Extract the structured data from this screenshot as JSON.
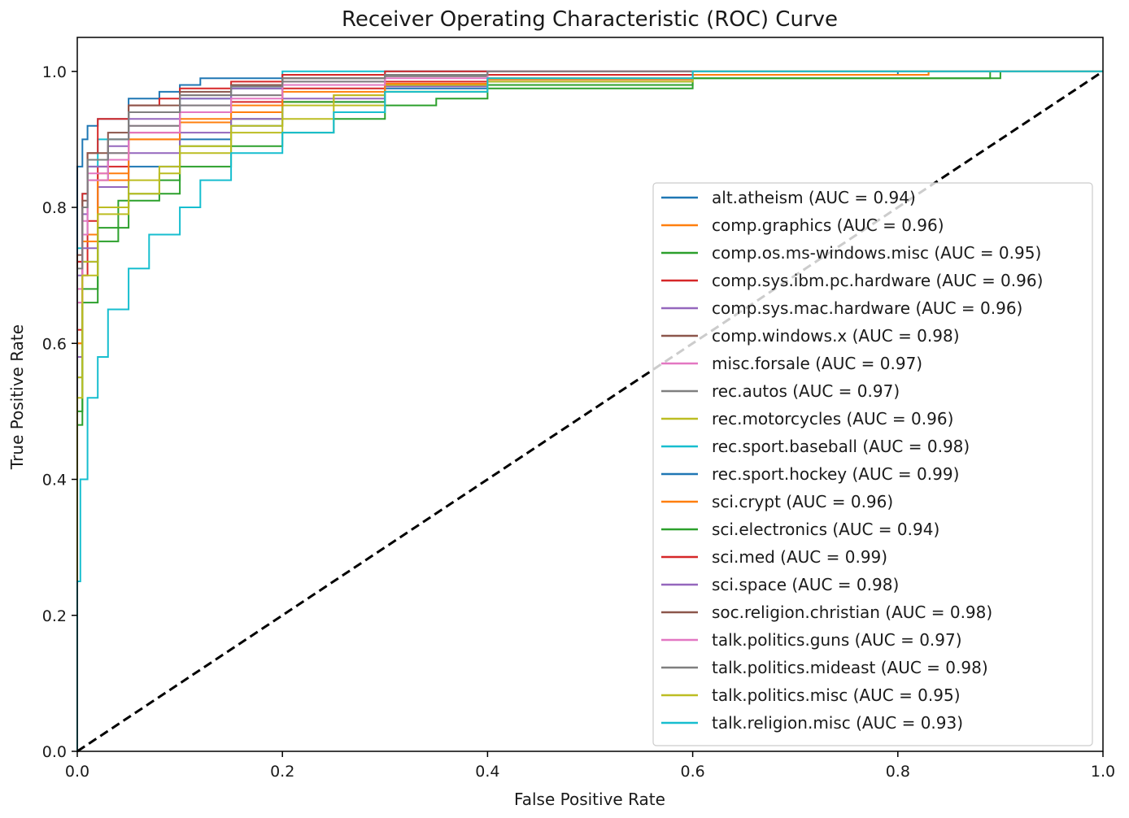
{
  "chart_data": {
    "type": "line",
    "title": "Receiver Operating Characteristic (ROC) Curve",
    "xlabel": "False Positive Rate",
    "ylabel": "True Positive Rate",
    "xlim": [
      0.0,
      1.0
    ],
    "ylim": [
      0.0,
      1.05
    ],
    "x_ticks": [
      "0.0",
      "0.2",
      "0.4",
      "0.6",
      "0.8",
      "1.0"
    ],
    "y_ticks": [
      "0.0",
      "0.2",
      "0.4",
      "0.6",
      "0.8",
      "1.0"
    ],
    "grid": false,
    "legend_position": "center-right",
    "diagonal_reference": {
      "x": [
        0,
        1
      ],
      "y": [
        0,
        1
      ],
      "color": "#000000",
      "style": "dashed"
    },
    "series": [
      {
        "name": "alt.atheism (AUC = 0.94)",
        "color": "#1f77b4",
        "x": [
          0,
          0.005,
          0.02,
          0.05,
          0.1,
          0.15,
          0.2,
          0.3,
          0.4,
          0.6,
          0.8,
          1.0
        ],
        "y": [
          0,
          0.55,
          0.72,
          0.8,
          0.86,
          0.9,
          0.92,
          0.955,
          0.975,
          0.985,
          0.995,
          1.0
        ]
      },
      {
        "name": "comp.graphics (AUC = 0.96)",
        "color": "#ff7f0e",
        "x": [
          0,
          0.005,
          0.02,
          0.05,
          0.1,
          0.15,
          0.2,
          0.25,
          0.3,
          0.4,
          0.6,
          0.83,
          1.0
        ],
        "y": [
          0,
          0.6,
          0.76,
          0.85,
          0.9,
          0.925,
          0.94,
          0.955,
          0.965,
          0.98,
          0.988,
          0.995,
          1.0
        ]
      },
      {
        "name": "comp.os.ms-windows.misc (AUC = 0.95)",
        "color": "#2ca02c",
        "x": [
          0,
          0.005,
          0.02,
          0.04,
          0.08,
          0.1,
          0.15,
          0.2,
          0.3,
          0.4,
          0.6,
          0.89,
          0.9,
          1.0
        ],
        "y": [
          0,
          0.5,
          0.68,
          0.75,
          0.81,
          0.84,
          0.89,
          0.93,
          0.955,
          0.97,
          0.98,
          0.99,
          1.0,
          1.0
        ]
      },
      {
        "name": "comp.sys.ibm.pc.hardware (AUC = 0.96)",
        "color": "#d62728",
        "x": [
          0,
          0.005,
          0.01,
          0.02,
          0.05,
          0.1,
          0.15,
          0.2,
          0.3,
          0.4,
          0.6,
          1.0
        ],
        "y": [
          0,
          0.62,
          0.7,
          0.78,
          0.86,
          0.91,
          0.94,
          0.955,
          0.975,
          0.985,
          0.995,
          1.0
        ]
      },
      {
        "name": "comp.sys.mac.hardware (AUC = 0.96)",
        "color": "#9467bd",
        "x": [
          0,
          0.005,
          0.02,
          0.05,
          0.1,
          0.15,
          0.2,
          0.3,
          0.4,
          0.6,
          1.0
        ],
        "y": [
          0,
          0.58,
          0.74,
          0.83,
          0.88,
          0.91,
          0.93,
          0.96,
          0.978,
          0.99,
          1.0
        ]
      },
      {
        "name": "comp.windows.x (AUC = 0.98)",
        "color": "#8c564b",
        "x": [
          0,
          0.005,
          0.01,
          0.03,
          0.05,
          0.1,
          0.15,
          0.2,
          0.3,
          0.4,
          0.6,
          1.0
        ],
        "y": [
          0,
          0.72,
          0.8,
          0.87,
          0.9,
          0.94,
          0.965,
          0.975,
          0.99,
          0.995,
          1.0,
          1.0
        ]
      },
      {
        "name": "misc.forsale (AUC = 0.97)",
        "color": "#e377c2",
        "x": [
          0,
          0.005,
          0.01,
          0.03,
          0.05,
          0.1,
          0.15,
          0.2,
          0.3,
          0.4,
          0.6,
          1.0
        ],
        "y": [
          0,
          0.68,
          0.78,
          0.85,
          0.88,
          0.92,
          0.95,
          0.965,
          0.985,
          0.993,
          1.0,
          1.0
        ]
      },
      {
        "name": "rec.autos (AUC = 0.97)",
        "color": "#7f7f7f",
        "x": [
          0,
          0.005,
          0.01,
          0.03,
          0.05,
          0.1,
          0.15,
          0.2,
          0.3,
          0.4,
          0.6,
          1.0
        ],
        "y": [
          0,
          0.66,
          0.76,
          0.84,
          0.88,
          0.92,
          0.95,
          0.965,
          0.985,
          0.993,
          1.0,
          1.0
        ]
      },
      {
        "name": "rec.motorcycles (AUC = 0.96)",
        "color": "#bcbd22",
        "x": [
          0,
          0.005,
          0.02,
          0.05,
          0.08,
          0.1,
          0.15,
          0.2,
          0.25,
          0.3,
          0.4,
          0.6,
          1.0
        ],
        "y": [
          0,
          0.55,
          0.72,
          0.8,
          0.84,
          0.86,
          0.89,
          0.92,
          0.95,
          0.965,
          0.98,
          0.99,
          1.0
        ]
      },
      {
        "name": "rec.sport.baseball (AUC = 0.98)",
        "color": "#17becf",
        "x": [
          0,
          0.005,
          0.01,
          0.02,
          0.05,
          0.1,
          0.15,
          0.2,
          0.31,
          0.4,
          0.6,
          1.0
        ],
        "y": [
          0,
          0.74,
          0.82,
          0.86,
          0.9,
          0.94,
          0.96,
          0.975,
          1.0,
          1.0,
          1.0,
          1.0
        ]
      },
      {
        "name": "rec.sport.hockey (AUC = 0.99)",
        "color": "#1f77b4",
        "x": [
          0,
          0.005,
          0.01,
          0.02,
          0.05,
          0.08,
          0.1,
          0.12,
          0.2,
          0.3,
          0.4,
          0.6,
          1.0
        ],
        "y": [
          0,
          0.86,
          0.9,
          0.92,
          0.93,
          0.96,
          0.97,
          0.98,
          0.99,
          0.995,
          1.0,
          1.0,
          1.0
        ]
      },
      {
        "name": "sci.crypt (AUC = 0.96)",
        "color": "#ff7f0e",
        "x": [
          0,
          0.005,
          0.02,
          0.05,
          0.1,
          0.15,
          0.2,
          0.3,
          0.4,
          0.6,
          0.83,
          1.0
        ],
        "y": [
          0,
          0.6,
          0.75,
          0.84,
          0.9,
          0.93,
          0.95,
          0.97,
          0.982,
          0.99,
          0.995,
          1.0
        ]
      },
      {
        "name": "sci.electronics (AUC = 0.94)",
        "color": "#2ca02c",
        "x": [
          0,
          0.005,
          0.02,
          0.05,
          0.1,
          0.15,
          0.2,
          0.25,
          0.3,
          0.35,
          0.4,
          0.6,
          0.9,
          1.0
        ],
        "y": [
          0,
          0.48,
          0.66,
          0.77,
          0.82,
          0.86,
          0.89,
          0.91,
          0.93,
          0.95,
          0.96,
          0.975,
          0.99,
          1.0
        ]
      },
      {
        "name": "sci.med (AUC = 0.99)",
        "color": "#d62728",
        "x": [
          0,
          0.005,
          0.01,
          0.02,
          0.05,
          0.08,
          0.1,
          0.15,
          0.2,
          0.3,
          0.4,
          0.6,
          1.0
        ],
        "y": [
          0,
          0.72,
          0.82,
          0.88,
          0.93,
          0.95,
          0.96,
          0.975,
          0.985,
          0.995,
          1.0,
          1.0,
          1.0
        ]
      },
      {
        "name": "sci.space (AUC = 0.98)",
        "color": "#9467bd",
        "x": [
          0,
          0.005,
          0.01,
          0.03,
          0.05,
          0.1,
          0.15,
          0.2,
          0.3,
          0.4,
          0.6,
          1.0
        ],
        "y": [
          0,
          0.7,
          0.79,
          0.86,
          0.89,
          0.93,
          0.96,
          0.975,
          0.99,
          0.995,
          1.0,
          1.0
        ]
      },
      {
        "name": "soc.religion.christian (AUC = 0.98)",
        "color": "#8c564b",
        "x": [
          0,
          0.005,
          0.01,
          0.03,
          0.05,
          0.1,
          0.15,
          0.2,
          0.3,
          0.4,
          0.6,
          1.0
        ],
        "y": [
          0,
          0.73,
          0.81,
          0.88,
          0.91,
          0.95,
          0.97,
          0.98,
          0.99,
          0.995,
          1.0,
          1.0
        ]
      },
      {
        "name": "talk.politics.guns (AUC = 0.97)",
        "color": "#e377c2",
        "x": [
          0,
          0.005,
          0.01,
          0.03,
          0.05,
          0.1,
          0.15,
          0.2,
          0.3,
          0.4,
          0.6,
          1.0
        ],
        "y": [
          0,
          0.66,
          0.76,
          0.84,
          0.87,
          0.91,
          0.94,
          0.96,
          0.98,
          0.99,
          1.0,
          1.0
        ]
      },
      {
        "name": "talk.politics.mideast (AUC = 0.98)",
        "color": "#7f7f7f",
        "x": [
          0,
          0.005,
          0.01,
          0.03,
          0.05,
          0.1,
          0.15,
          0.2,
          0.3,
          0.4,
          0.6,
          1.0
        ],
        "y": [
          0,
          0.71,
          0.8,
          0.87,
          0.9,
          0.94,
          0.965,
          0.978,
          0.99,
          0.995,
          1.0,
          1.0
        ]
      },
      {
        "name": "talk.politics.misc (AUC = 0.95)",
        "color": "#bcbd22",
        "x": [
          0,
          0.005,
          0.02,
          0.05,
          0.08,
          0.1,
          0.15,
          0.2,
          0.25,
          0.3,
          0.4,
          0.6,
          1.0
        ],
        "y": [
          0,
          0.52,
          0.7,
          0.79,
          0.82,
          0.85,
          0.88,
          0.91,
          0.93,
          0.95,
          0.97,
          0.985,
          1.0
        ]
      },
      {
        "name": "talk.religion.misc (AUC = 0.93)",
        "color": "#17becf",
        "x": [
          0,
          0.003,
          0.01,
          0.02,
          0.03,
          0.05,
          0.07,
          0.1,
          0.12,
          0.15,
          0.2,
          0.25,
          0.3,
          0.4,
          0.6,
          1.0
        ],
        "y": [
          0,
          0.25,
          0.4,
          0.52,
          0.58,
          0.65,
          0.71,
          0.76,
          0.8,
          0.84,
          0.88,
          0.91,
          0.94,
          0.97,
          0.99,
          1.0
        ]
      }
    ]
  }
}
